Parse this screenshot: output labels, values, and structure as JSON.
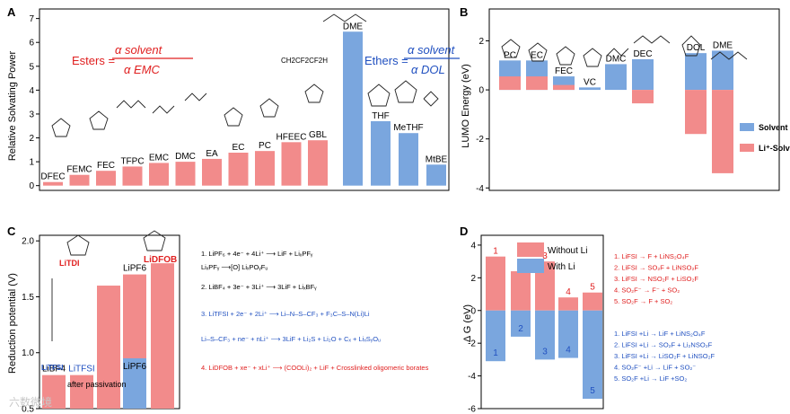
{
  "panels": {
    "A": {
      "label": "A",
      "ylabel": "Relative Solvating Power",
      "esters_formula": {
        "lhs": "Esters =",
        "num": "α solvent",
        "den": "α EMC"
      },
      "ethers_formula": {
        "lhs": "Ethers =",
        "num": "α solvent",
        "den": "α DOL"
      },
      "side_formula": "CH2CF2CF2H"
    },
    "B": {
      "label": "B",
      "ylabel": "LUMO Energy (eV)",
      "legend": [
        "Solvent",
        "Li⁺-Solvent"
      ]
    },
    "C": {
      "label": "C",
      "ylabel": "Reduction potential (V)",
      "annotation": "after passivation",
      "salt_labels": [
        "LiTDI",
        "LiDFOB",
        "LiTFSI"
      ],
      "reactions": [
        "1. LiPF₆ + 4e⁻ + 4Li⁺ ⟶ LiF + LiₓPFᵧ",
        "LiₓPFᵧ ⟶[O] LiₓPOᵧFᵤ",
        "2. LiBF₄ + 3e⁻ + 3Li⁺ ⟶ 3LiF + LiₓBFᵧ",
        "3. LiTFSI + 2e⁻ + 2Li⁺ ⟶ Li–N–S–CF₃ + F₃C–S–N(Li)Li",
        "Li–S–CF₃ + ne⁻ + nLi⁺ ⟶ 3LiF + Li₂S + Li₂O + Cₓ + LiₓSᵧOᵤ",
        "4. LiDFOB + xe⁻ + xLi⁺ ⟶ (COOLi)₂ + LiF + Crosslinked oligomeric borates"
      ]
    },
    "D": {
      "label": "D",
      "ylabel": "Δ G (eV)",
      "legend": [
        "Without Li",
        "With Li"
      ],
      "reactions_without": [
        "1. LiFSI → F + LiNS₂O₄F",
        "2. LiFSI → SO₂F + LiNSO₂F",
        "3. LiFSI → NSO₂F + LiSO₂F",
        "4. SO₂F⁻ → F⁻ + SO₂",
        "5. SO₂F → F + SO₂"
      ],
      "reactions_with": [
        "1. LiFSI +Li → LiF + LiNS₂O₄F",
        "2. LiFSI +Li → SO₂F + Li₂NSO₂F",
        "3. LiFSI +Li → LiSO₂F + LiNSO₂F",
        "4. SO₂F⁻ +Li → LiF + SO₂⁻",
        "5. SO₂F +Li → LiF +SO₂"
      ]
    }
  },
  "watermark": "六数微境",
  "colors": {
    "red": "#f28b8b",
    "blue": "#7aa6de",
    "text_red": "#e02020",
    "text_blue": "#2050c0"
  },
  "chart_data": [
    {
      "id": "A",
      "type": "bar",
      "categories": [
        "DFEC",
        "FEMC",
        "FEC",
        "TFPC",
        "EMC",
        "DMC",
        "EA",
        "EC",
        "PC",
        "HFEEC",
        "GBL",
        "DME",
        "THF",
        "MeTHF",
        "MtBE"
      ],
      "values": [
        0.15,
        0.45,
        0.62,
        0.8,
        0.95,
        1.0,
        1.12,
        1.38,
        1.45,
        1.82,
        1.9,
        6.45,
        2.7,
        2.2,
        0.88
      ],
      "colors": [
        "red",
        "red",
        "red",
        "red",
        "red",
        "red",
        "red",
        "red",
        "red",
        "red",
        "red",
        "blue",
        "blue",
        "blue",
        "blue"
      ],
      "yticks": [
        0,
        1,
        2,
        3,
        4,
        5,
        6,
        7
      ],
      "ylim": [
        -0.2,
        7.4
      ]
    },
    {
      "id": "B",
      "type": "bar",
      "categories": [
        "PC",
        "EC",
        "FEC",
        "VC",
        "DMC",
        "DEC",
        "DOL",
        "DME"
      ],
      "series": [
        {
          "name": "Solvent",
          "values": [
            1.2,
            1.2,
            0.55,
            0.1,
            1.05,
            1.25,
            1.5,
            1.6
          ]
        },
        {
          "name": "Li⁺-Solvent",
          "values": [
            0.55,
            0.55,
            0.2,
            null,
            null,
            -0.55,
            -1.8,
            -3.4
          ]
        }
      ],
      "yticks": [
        -4,
        -2,
        0,
        2
      ],
      "ylim": [
        -4.1,
        3.3
      ]
    },
    {
      "id": "C",
      "type": "bar",
      "categories": [
        "LiBF4",
        "LiTFSI",
        "LiTDI",
        "LiPF6",
        "LiDFOB"
      ],
      "values": [
        0.8,
        0.8,
        1.6,
        1.7,
        1.8
      ],
      "colors": [
        "red",
        "red",
        "red",
        "red",
        "red"
      ],
      "overlay": {
        "category": "LiPF6",
        "value": 0.95
      },
      "yticks": [
        0.5,
        1.0,
        1.5,
        2.0
      ],
      "ylim": [
        0.5,
        2.05
      ]
    },
    {
      "id": "D",
      "type": "bar",
      "categories": [
        "1",
        "2",
        "3",
        "4",
        "5"
      ],
      "series": [
        {
          "name": "Without Li",
          "values": [
            3.3,
            2.4,
            3.0,
            0.8,
            1.1
          ]
        },
        {
          "name": "With Li",
          "values": [
            -3.1,
            -1.6,
            -3.0,
            -2.9,
            -5.4
          ]
        }
      ],
      "yticks": [
        -6,
        -4,
        -2,
        0,
        2,
        4
      ],
      "ylim": [
        -6,
        4.6
      ]
    }
  ]
}
